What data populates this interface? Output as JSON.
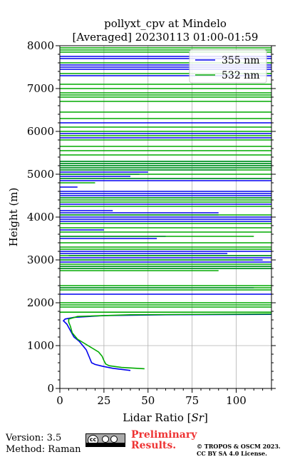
{
  "chart_data": {
    "type": "line",
    "title": "pollyxt_cpv at Mindelo",
    "subtitle": "[Averaged] 20230113 01:00-01:59",
    "xlabel": "Lidar Ratio [$Sr$]",
    "ylabel": "Height (m)",
    "xlim": [
      0,
      120
    ],
    "ylim": [
      0,
      8000
    ],
    "xticks": [
      0,
      25,
      50,
      75,
      100
    ],
    "xtick_labels": [
      "0",
      "25",
      "50",
      "75",
      "100"
    ],
    "yticks": [
      0,
      1000,
      2000,
      3000,
      4000,
      5000,
      6000,
      7000,
      8000
    ],
    "ytick_labels": [
      "0",
      "1000",
      "2000",
      "3000",
      "4000",
      "5000",
      "6000",
      "7000",
      "8000"
    ],
    "grid": true,
    "legend_position": "top-right",
    "series": [
      {
        "name": "355 nm",
        "color": "#0000ee",
        "points": [
          [
            40,
            420
          ],
          [
            30,
            470
          ],
          [
            24,
            520
          ],
          [
            20,
            560
          ],
          [
            18,
            600
          ],
          [
            17,
            700
          ],
          [
            16,
            800
          ],
          [
            15,
            900
          ],
          [
            13,
            1000
          ],
          [
            11,
            1100
          ],
          [
            8,
            1200
          ],
          [
            6,
            1350
          ],
          [
            4,
            1500
          ],
          [
            2,
            1580
          ],
          [
            3,
            1620
          ],
          [
            8,
            1660
          ],
          [
            25,
            1700
          ],
          [
            60,
            1720
          ],
          [
            120,
            1730
          ]
        ],
        "bands": [
          [
            2200,
            0,
            120
          ],
          [
            2350,
            0,
            110
          ],
          [
            2800,
            0,
            120
          ],
          [
            2850,
            0,
            120
          ],
          [
            2950,
            0,
            120
          ],
          [
            3000,
            0,
            115
          ],
          [
            3050,
            0,
            120
          ],
          [
            3100,
            5,
            120
          ],
          [
            3150,
            0,
            95
          ],
          [
            3200,
            0,
            120
          ],
          [
            3500,
            0,
            55
          ],
          [
            3550,
            0,
            60
          ],
          [
            3700,
            0,
            25
          ],
          [
            3900,
            0,
            120
          ],
          [
            3950,
            0,
            120
          ],
          [
            4000,
            0,
            120
          ],
          [
            4050,
            0,
            90
          ],
          [
            4100,
            0,
            90
          ],
          [
            4150,
            0,
            30
          ],
          [
            4300,
            0,
            120
          ],
          [
            4450,
            0,
            120
          ],
          [
            4500,
            0,
            120
          ],
          [
            4550,
            0,
            120
          ],
          [
            4600,
            0,
            120
          ],
          [
            4700,
            0,
            10
          ],
          [
            4850,
            0,
            120
          ],
          [
            4900,
            0,
            120
          ],
          [
            4950,
            0,
            40
          ],
          [
            5000,
            0,
            45
          ],
          [
            5050,
            0,
            50
          ],
          [
            5100,
            0,
            100
          ],
          [
            5150,
            0,
            120
          ],
          [
            5200,
            0,
            120
          ],
          [
            5250,
            0,
            120
          ],
          [
            5300,
            0,
            120
          ],
          [
            5850,
            0,
            120
          ],
          [
            5950,
            0,
            120
          ],
          [
            6200,
            0,
            120
          ],
          [
            7300,
            0,
            120
          ],
          [
            7450,
            0,
            120
          ],
          [
            7500,
            0,
            120
          ],
          [
            7550,
            0,
            120
          ],
          [
            7700,
            0,
            120
          ],
          [
            7750,
            0,
            120
          ]
        ]
      },
      {
        "name": "532 nm",
        "color": "#00aa00",
        "points": [
          [
            48,
            460
          ],
          [
            35,
            490
          ],
          [
            28,
            530
          ],
          [
            26,
            570
          ],
          [
            25,
            650
          ],
          [
            24,
            750
          ],
          [
            22,
            850
          ],
          [
            18,
            950
          ],
          [
            14,
            1050
          ],
          [
            10,
            1150
          ],
          [
            7,
            1300
          ],
          [
            6,
            1450
          ],
          [
            5,
            1550
          ],
          [
            5,
            1620
          ],
          [
            10,
            1680
          ],
          [
            40,
            1720
          ],
          [
            120,
            1740
          ]
        ],
        "bands": [
          [
            1780,
            0,
            120
          ],
          [
            1900,
            0,
            120
          ],
          [
            1950,
            0,
            120
          ],
          [
            2000,
            0,
            120
          ],
          [
            2300,
            0,
            120
          ],
          [
            2350,
            0,
            120
          ],
          [
            2400,
            0,
            120
          ],
          [
            2750,
            0,
            90
          ],
          [
            2800,
            0,
            120
          ],
          [
            2850,
            0,
            120
          ],
          [
            2900,
            0,
            120
          ],
          [
            3000,
            0,
            110
          ],
          [
            3100,
            0,
            120
          ],
          [
            3250,
            0,
            120
          ],
          [
            3300,
            0,
            120
          ],
          [
            3400,
            0,
            120
          ],
          [
            3550,
            0,
            110
          ],
          [
            3650,
            0,
            120
          ],
          [
            3750,
            0,
            120
          ],
          [
            3850,
            0,
            120
          ],
          [
            4050,
            0,
            120
          ],
          [
            4250,
            0,
            120
          ],
          [
            4350,
            0,
            120
          ],
          [
            4400,
            0,
            120
          ],
          [
            4450,
            0,
            120
          ],
          [
            4800,
            0,
            20
          ],
          [
            4900,
            0,
            120
          ],
          [
            5000,
            0,
            120
          ],
          [
            5100,
            0,
            120
          ],
          [
            5150,
            0,
            120
          ],
          [
            5200,
            0,
            120
          ],
          [
            5250,
            0,
            120
          ],
          [
            5300,
            0,
            120
          ],
          [
            5450,
            0,
            120
          ],
          [
            5550,
            0,
            120
          ],
          [
            5650,
            0,
            120
          ],
          [
            5800,
            0,
            120
          ],
          [
            5900,
            0,
            120
          ],
          [
            6000,
            0,
            120
          ],
          [
            6100,
            0,
            120
          ],
          [
            6300,
            0,
            120
          ],
          [
            6450,
            0,
            120
          ],
          [
            6700,
            0,
            120
          ],
          [
            6800,
            0,
            120
          ],
          [
            6850,
            0,
            120
          ],
          [
            6900,
            0,
            120
          ],
          [
            7000,
            0,
            120
          ],
          [
            7100,
            0,
            120
          ],
          [
            7350,
            0,
            120
          ],
          [
            7600,
            0,
            120
          ],
          [
            7850,
            0,
            120
          ],
          [
            7900,
            0,
            120
          ],
          [
            7950,
            0,
            120
          ]
        ]
      }
    ]
  },
  "footer": {
    "version": "Version: 3.5",
    "method": "Method: Raman",
    "preliminary_line1": "Preliminary",
    "preliminary_line2": "Results.",
    "copyright_line1": "© TROPOS & OSCM 2023.",
    "copyright_line2": "CC BY SA 4.0 License."
  }
}
